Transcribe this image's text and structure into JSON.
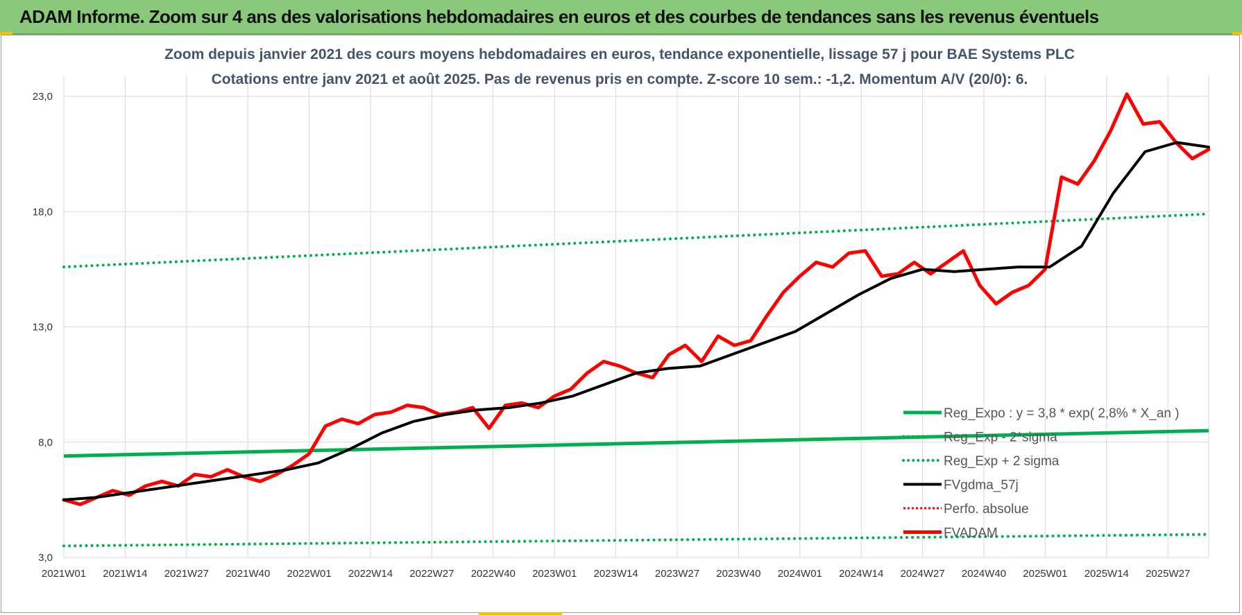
{
  "banner": {
    "title": "ADAM Informe. Zoom sur 4 ans des valorisations hebdomadaires en euros et des courbes de tendances sans les revenus éventuels"
  },
  "colors": {
    "banner": "#8ac97c",
    "reg_expo": "#00b050",
    "fvadam": "#ff0000",
    "fvgdma": "#000000",
    "perfo": "#ff0000",
    "grid": "#d9d9d9"
  },
  "chart_data": {
    "type": "line",
    "title_lines": [
      "Zoom depuis janvier 2021 des cours moyens hebdomadaires en euros, tendance exponentielle, lissage 57 j pour BAE Systems PLC",
      "Cotations entre janv 2021 et août 2025.  Pas de revenus pris en compte. Z-score 10 sem.: -1,2. Momentum A/V (20/0): 6."
    ],
    "x_tick_labels": [
      "2021W01",
      "2021W14",
      "2021W27",
      "2021W40",
      "2022W01",
      "2022W14",
      "2022W27",
      "2022W40",
      "2023W01",
      "2023W14",
      "2023W27",
      "2023W40",
      "2024W01",
      "2024W14",
      "2024W27",
      "2024W40",
      "2025W01",
      "2025W14",
      "2025W27"
    ],
    "y_tick_labels": [
      "3,0",
      "8,0",
      "13,0",
      "18,0",
      "23,0"
    ],
    "ylim": [
      3,
      23
    ],
    "grid": true,
    "legend_position": "bottom-right",
    "legend": [
      {
        "label": "Reg_Expo : y = 3,8 * exp( 2,8% *  X_an )",
        "style": "solid-green"
      },
      {
        "label": "Reg_Exp - 2*sigma",
        "style": "dotted-green"
      },
      {
        "label": "Reg_Exp + 2 sigma",
        "style": "dotted-green"
      },
      {
        "label": "FVgdma_57j",
        "style": "solid-black"
      },
      {
        "label": "Perfo. absolue",
        "style": "dotted-red"
      },
      {
        "label": "FVADAM",
        "style": "solid-red"
      }
    ],
    "series": [
      {
        "name": "Reg_Expo : y = 3,8 * exp( 2,8% *  X_an )",
        "key": "reg",
        "y_start": 7.4,
        "y_end": 8.5
      },
      {
        "name": "Reg_Exp - 2*sigma",
        "key": "low",
        "y_start": 3.5,
        "y_end": 4.0
      },
      {
        "name": "Reg_Exp + 2 sigma",
        "key": "high",
        "y_start": 15.6,
        "y_end": 17.9
      },
      {
        "name": "FVgdma_57j",
        "key": "gdma",
        "week_start": 0,
        "values": [
          5.5,
          5.6,
          5.8,
          6.0,
          6.2,
          6.4,
          6.6,
          6.8,
          7.1,
          7.7,
          8.4,
          8.9,
          9.2,
          9.4,
          9.5,
          9.7,
          10.0,
          10.5,
          11.0,
          11.2,
          11.3,
          11.8,
          12.3,
          12.8,
          13.6,
          14.4,
          15.1,
          15.5,
          15.4,
          15.5,
          15.6,
          15.6,
          16.5,
          18.8,
          20.6,
          21.0,
          20.8
        ]
      },
      {
        "name": "FVADAM",
        "key": "adam",
        "week_start": 0,
        "values": [
          5.5,
          5.3,
          5.6,
          5.9,
          5.7,
          6.1,
          6.3,
          6.1,
          6.6,
          6.5,
          6.8,
          6.5,
          6.3,
          6.6,
          7.0,
          7.5,
          8.7,
          9.0,
          8.8,
          9.2,
          9.3,
          9.6,
          9.5,
          9.2,
          9.3,
          9.5,
          8.6,
          9.6,
          9.7,
          9.5,
          10.0,
          10.3,
          11.0,
          11.5,
          11.3,
          11.0,
          10.8,
          11.8,
          12.2,
          11.5,
          12.6,
          12.2,
          12.4,
          13.5,
          14.5,
          15.2,
          15.8,
          15.6,
          16.2,
          16.3,
          15.2,
          15.3,
          15.8,
          15.3,
          15.8,
          16.3,
          14.8,
          14.0,
          14.5,
          14.8,
          15.5,
          19.5,
          19.2,
          20.2,
          21.5,
          23.1,
          21.8,
          21.9,
          21.0,
          20.3,
          20.7
        ]
      }
    ]
  }
}
